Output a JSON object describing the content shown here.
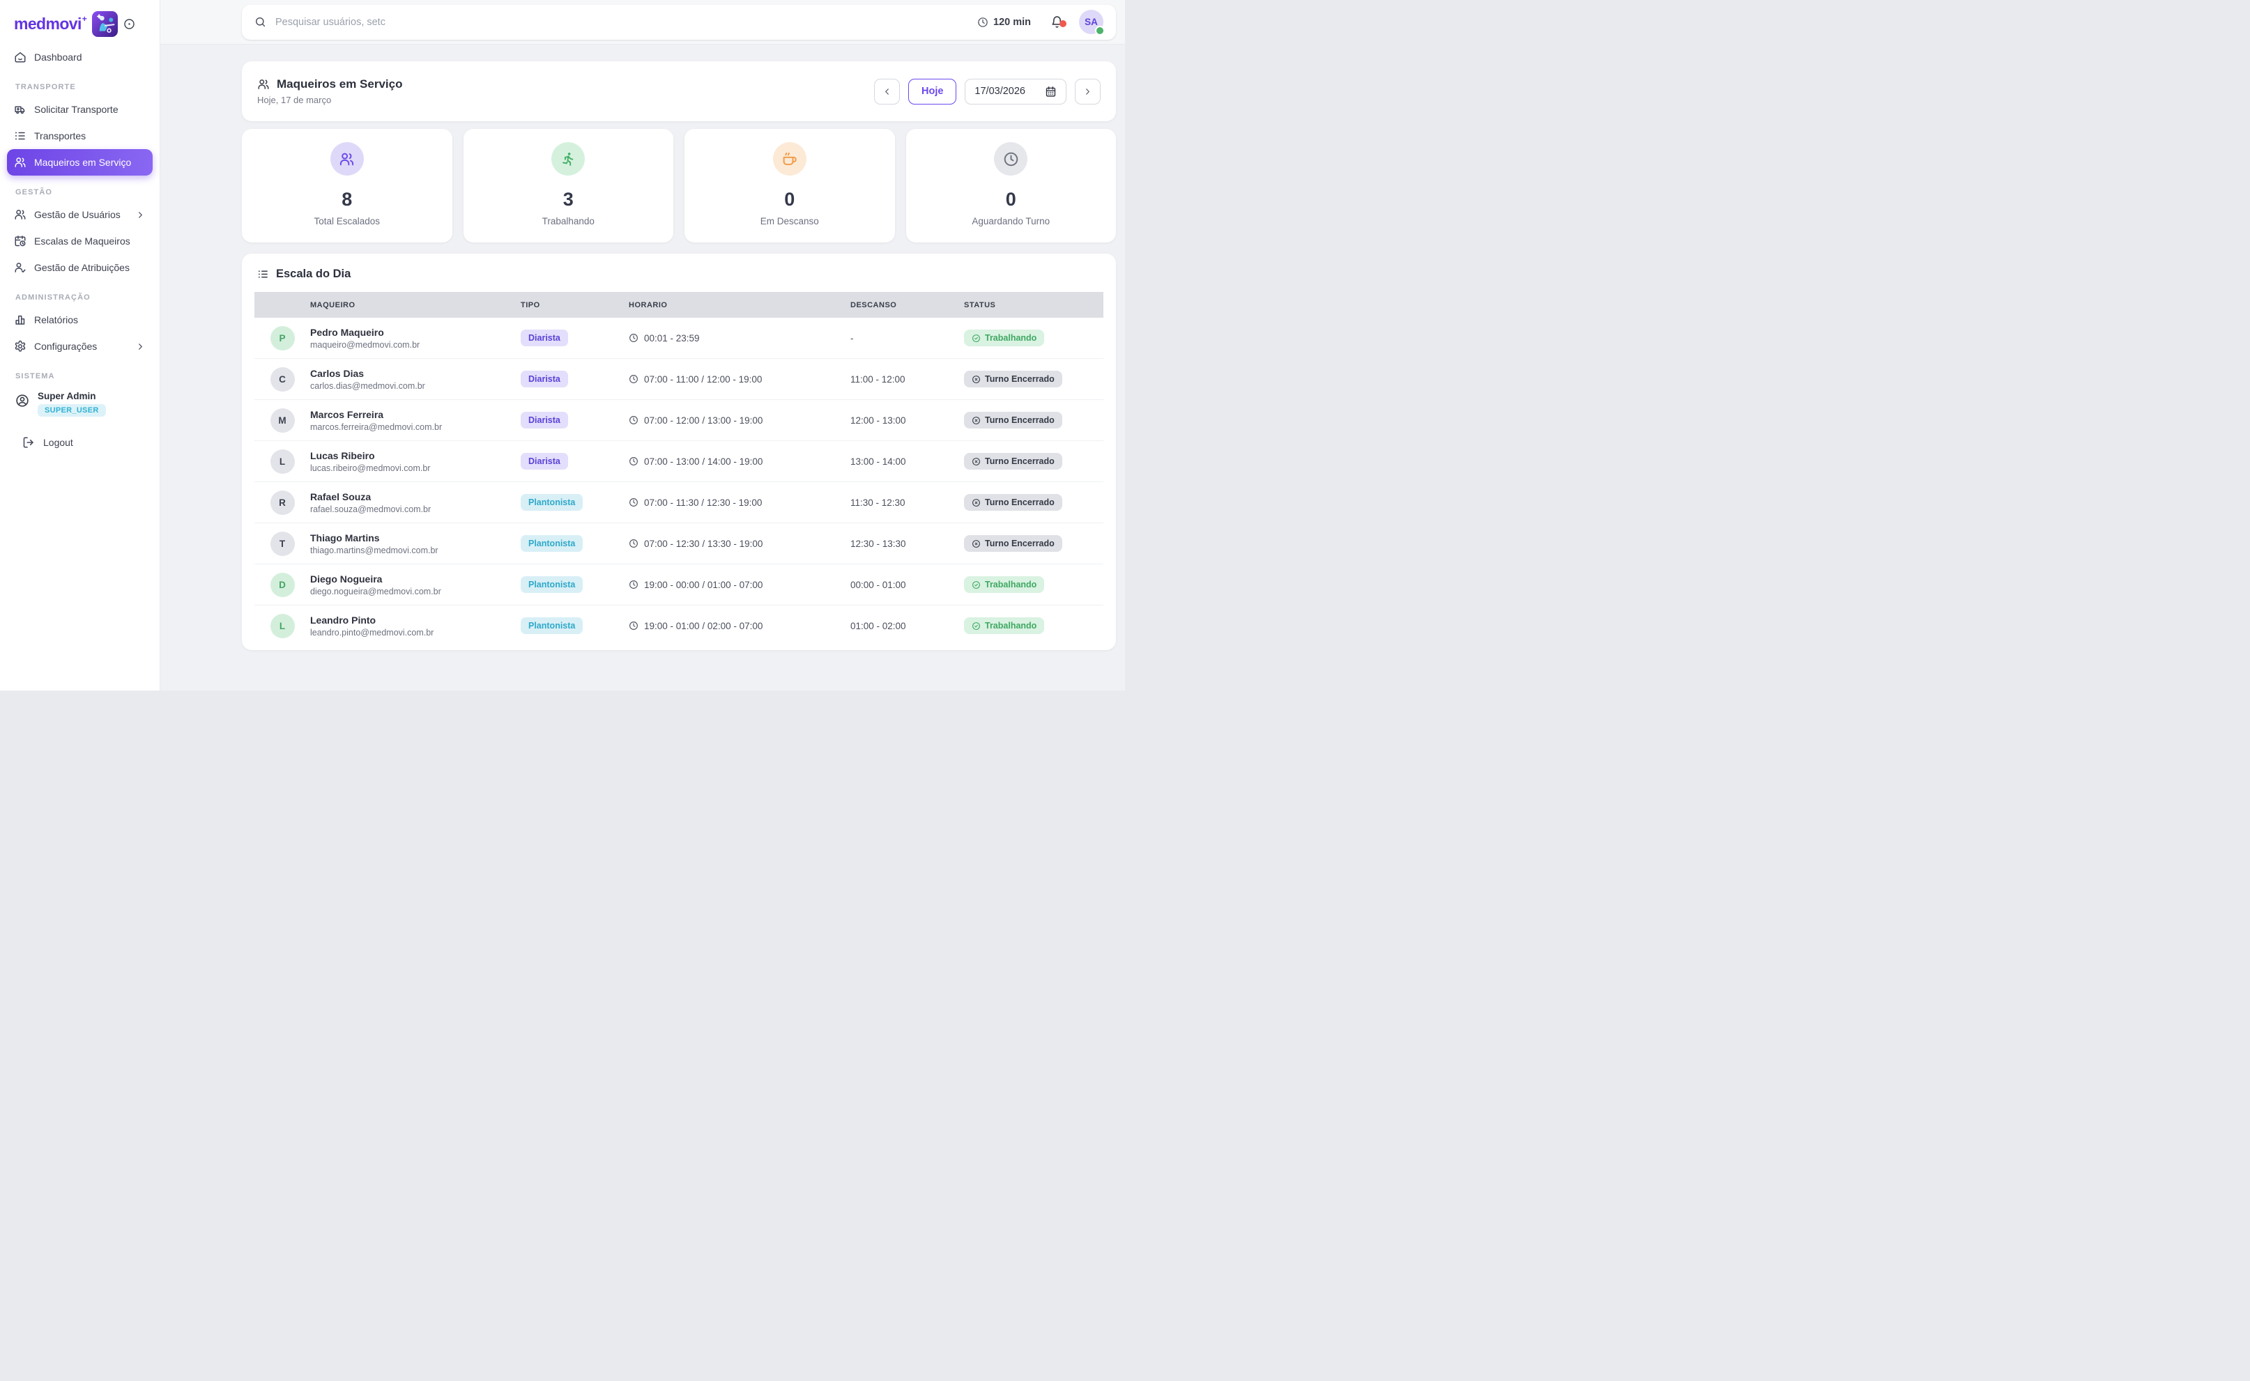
{
  "sidebar": {
    "logo_text": "medmovi",
    "logo_sup": "+",
    "sections": [
      {
        "title": null,
        "items": [
          {
            "label": "Dashboard",
            "icon": "home"
          }
        ]
      },
      {
        "title": "TRANSPORTE",
        "items": [
          {
            "label": "Solicitar Transporte",
            "icon": "ambulance"
          },
          {
            "label": "Transportes",
            "icon": "list"
          },
          {
            "label": "Maqueiros em Serviço",
            "icon": "users",
            "active": true
          }
        ]
      },
      {
        "title": "GESTÃO",
        "items": [
          {
            "label": "Gestão de Usuários",
            "icon": "users",
            "chevron": true
          },
          {
            "label": "Escalas de Maqueiros",
            "icon": "calendar-clock"
          },
          {
            "label": "Gestão de Atribuições",
            "icon": "user-check"
          }
        ]
      },
      {
        "title": "ADMINISTRAÇÃO",
        "items": [
          {
            "label": "Relatórios",
            "icon": "chart"
          },
          {
            "label": "Configurações",
            "icon": "gear",
            "chevron": true
          }
        ]
      }
    ],
    "system": {
      "title": "SISTEMA",
      "user_name": "Super Admin",
      "user_role": "SUPER_USER",
      "logout_label": "Logout"
    }
  },
  "topbar": {
    "search_placeholder": "Pesquisar usuários, setc",
    "timer": "120 min",
    "avatar_initials": "SA"
  },
  "header": {
    "title": "Maqueiros em Serviço",
    "subtitle": "Hoje, 17 de março",
    "today_button": "Hoje",
    "date_value": "17/03/2026"
  },
  "stats": [
    {
      "value": "8",
      "label": "Total Escalados",
      "icon": "users",
      "color": "purple"
    },
    {
      "value": "3",
      "label": "Trabalhando",
      "icon": "runner",
      "color": "green"
    },
    {
      "value": "0",
      "label": "Em Descanso",
      "icon": "coffee",
      "color": "orange"
    },
    {
      "value": "0",
      "label": "Aguardando Turno",
      "icon": "clock",
      "color": "gray"
    }
  ],
  "schedule": {
    "title": "Escala do Dia",
    "columns": [
      "MAQUEIRO",
      "TIPO",
      "HORARIO",
      "DESCANSO",
      "STATUS"
    ],
    "rows": [
      {
        "initial": "P",
        "avatar_color": "green",
        "name": "Pedro Maqueiro",
        "email": "maqueiro@medmovi.com.br",
        "tipo": "Diarista",
        "horario": "00:01 - 23:59",
        "descanso": "-",
        "status": "Trabalhando"
      },
      {
        "initial": "C",
        "avatar_color": "gray",
        "name": "Carlos Dias",
        "email": "carlos.dias@medmovi.com.br",
        "tipo": "Diarista",
        "horario": "07:00 - 11:00 / 12:00 - 19:00",
        "descanso": "11:00 - 12:00",
        "status": "Turno Encerrado"
      },
      {
        "initial": "M",
        "avatar_color": "gray",
        "name": "Marcos Ferreira",
        "email": "marcos.ferreira@medmovi.com.br",
        "tipo": "Diarista",
        "horario": "07:00 - 12:00 / 13:00 - 19:00",
        "descanso": "12:00 - 13:00",
        "status": "Turno Encerrado"
      },
      {
        "initial": "L",
        "avatar_color": "gray",
        "name": "Lucas Ribeiro",
        "email": "lucas.ribeiro@medmovi.com.br",
        "tipo": "Diarista",
        "horario": "07:00 - 13:00 / 14:00 - 19:00",
        "descanso": "13:00 - 14:00",
        "status": "Turno Encerrado"
      },
      {
        "initial": "R",
        "avatar_color": "gray",
        "name": "Rafael Souza",
        "email": "rafael.souza@medmovi.com.br",
        "tipo": "Plantonista",
        "horario": "07:00 - 11:30 / 12:30 - 19:00",
        "descanso": "11:30 - 12:30",
        "status": "Turno Encerrado"
      },
      {
        "initial": "T",
        "avatar_color": "gray",
        "name": "Thiago Martins",
        "email": "thiago.martins@medmovi.com.br",
        "tipo": "Plantonista",
        "horario": "07:00 - 12:30 / 13:30 - 19:00",
        "descanso": "12:30 - 13:30",
        "status": "Turno Encerrado"
      },
      {
        "initial": "D",
        "avatar_color": "green",
        "name": "Diego Nogueira",
        "email": "diego.nogueira@medmovi.com.br",
        "tipo": "Plantonista",
        "horario": "19:00 - 00:00 / 01:00 - 07:00",
        "descanso": "00:00 - 01:00",
        "status": "Trabalhando"
      },
      {
        "initial": "L",
        "avatar_color": "green",
        "name": "Leandro Pinto",
        "email": "leandro.pinto@medmovi.com.br",
        "tipo": "Plantonista",
        "horario": "19:00 - 01:00 / 02:00 - 07:00",
        "descanso": "01:00 - 02:00",
        "status": "Trabalhando"
      }
    ],
    "status_working_label": "Trabalhando",
    "status_ended_label": "Turno Encerrado"
  },
  "colors": {
    "accent": "#6d44e6",
    "accent_gradient_end": "#8a68f2",
    "logo_purple": "#6334e2",
    "badge_diarista_text": "#5a41d8",
    "badge_plantonista_text": "#2ea9c9",
    "status_working_text": "#3fa863",
    "status_ended_text": "#363a46",
    "super_user_badge_text": "#30b2d4",
    "notification_dot": "#ee5a50",
    "online_dot": "#4cb36a"
  }
}
